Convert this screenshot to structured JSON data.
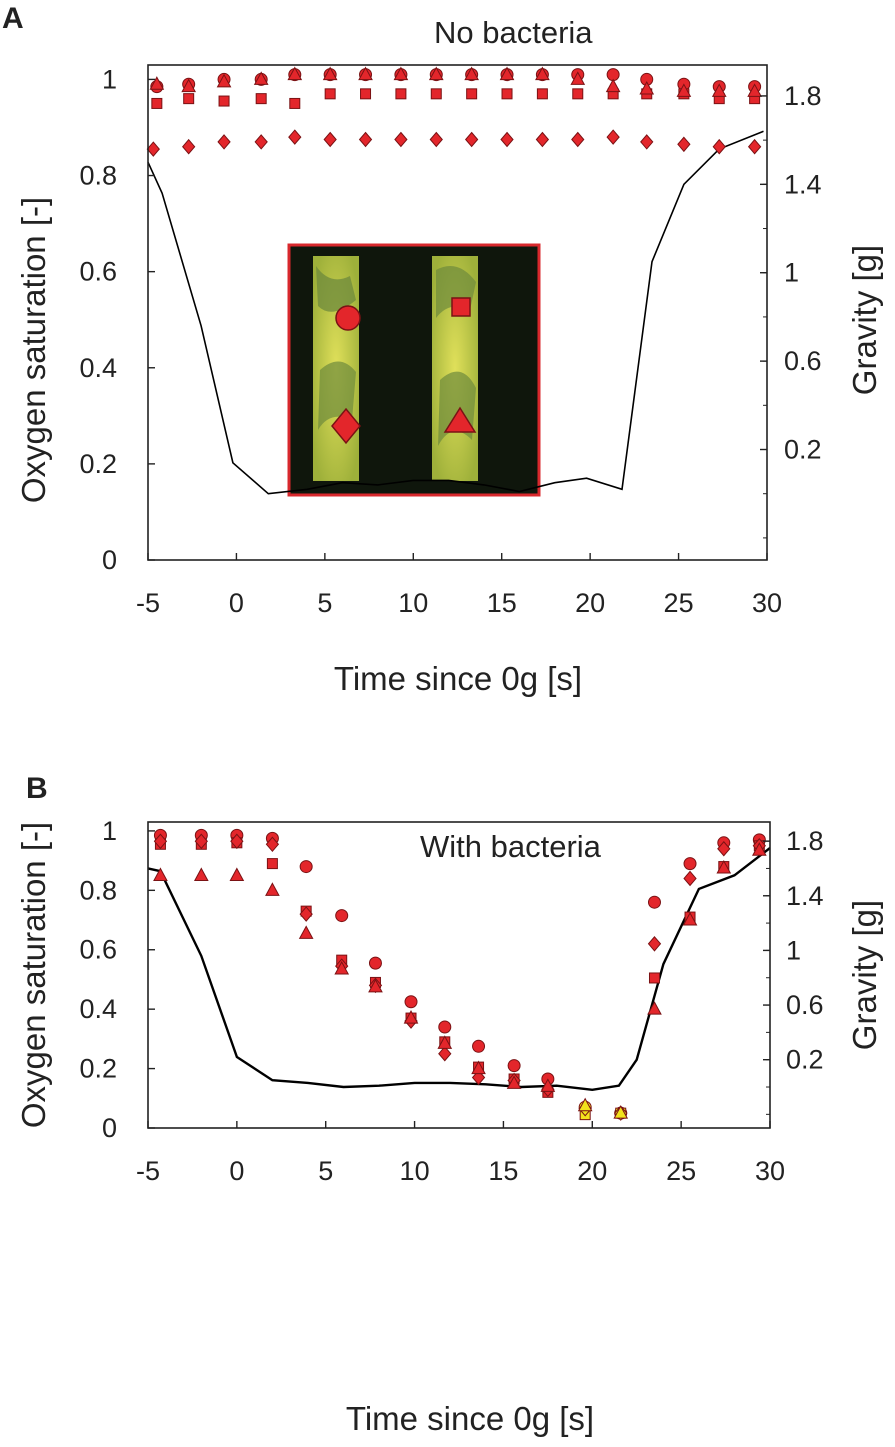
{
  "chart_data": [
    {
      "type": "scatter",
      "panel_label": "A",
      "annotation": "No bacteria",
      "xlabel": "Time since 0g [s]",
      "ylabel": "Oxygen saturation [-]",
      "y2label": "Gravity [g]",
      "xlim": [
        -5,
        30
      ],
      "ylim": [
        0,
        1.03
      ],
      "y2lim": [
        -0.3,
        1.94
      ],
      "x_ticks": [
        "-5",
        "0",
        "5",
        "10",
        "15",
        "20",
        "25",
        "30"
      ],
      "y_ticks": [
        "0",
        "0.2",
        "0.4",
        "0.6",
        "0.8",
        "1"
      ],
      "y2_ticks": [
        "0.2",
        "0.6",
        "1",
        "1.4",
        "1.8"
      ],
      "grid": false,
      "colors": {
        "marker": "#e3262b",
        "marker_edge": "#7a1214",
        "line": "#000000",
        "inset_border": "#d8282d"
      },
      "inset": {
        "description_markers": [
          "circle",
          "square",
          "diamond",
          "triangle"
        ]
      },
      "series": [
        {
          "marker": "circle",
          "x": [
            -4.5,
            -2.7,
            -0.7,
            1.4,
            3.3,
            5.3,
            7.3,
            9.3,
            11.3,
            13.3,
            15.3,
            17.3,
            19.3,
            21.3,
            23.2,
            25.3,
            27.3,
            29.3
          ],
          "y": [
            0.985,
            0.99,
            1.0,
            1.0,
            1.01,
            1.01,
            1.01,
            1.01,
            1.01,
            1.01,
            1.01,
            1.01,
            1.01,
            1.01,
            1.0,
            0.99,
            0.985,
            0.985
          ]
        },
        {
          "marker": "square",
          "x": [
            -4.5,
            -2.7,
            -0.7,
            1.4,
            3.3,
            5.3,
            7.3,
            9.3,
            11.3,
            13.3,
            15.3,
            17.3,
            19.3,
            21.3,
            23.2,
            25.3,
            27.3,
            29.3
          ],
          "y": [
            0.95,
            0.96,
            0.955,
            0.96,
            0.95,
            0.97,
            0.97,
            0.97,
            0.97,
            0.97,
            0.97,
            0.97,
            0.97,
            0.97,
            0.97,
            0.97,
            0.96,
            0.96
          ]
        },
        {
          "marker": "diamond",
          "x": [
            -4.7,
            -2.7,
            -0.7,
            1.4,
            3.3,
            5.3,
            7.3,
            9.3,
            11.3,
            13.3,
            15.3,
            17.3,
            19.3,
            21.3,
            23.2,
            25.3,
            27.3,
            29.3
          ],
          "y": [
            0.855,
            0.86,
            0.87,
            0.87,
            0.88,
            0.875,
            0.875,
            0.875,
            0.875,
            0.875,
            0.875,
            0.875,
            0.875,
            0.88,
            0.87,
            0.865,
            0.86,
            0.86
          ]
        },
        {
          "marker": "triangle",
          "x": [
            -4.5,
            -2.7,
            -0.7,
            1.4,
            3.3,
            5.3,
            7.3,
            9.3,
            11.3,
            13.3,
            15.3,
            17.3,
            19.3,
            21.3,
            23.2,
            25.3,
            27.3,
            29.3
          ],
          "y": [
            0.99,
            0.985,
            0.995,
            1.0,
            1.01,
            1.01,
            1.01,
            1.01,
            1.01,
            1.01,
            1.01,
            1.01,
            1.0,
            0.985,
            0.98,
            0.975,
            0.975,
            0.975
          ]
        }
      ],
      "gravity": {
        "x": [
          -5,
          -4.2,
          -2,
          -0.2,
          1.8,
          4,
          6,
          8,
          10,
          12,
          14,
          16,
          18,
          19.8,
          21.8,
          23.5,
          25.3,
          27.3,
          29.8
        ],
        "g": [
          1.5,
          1.36,
          0.76,
          0.14,
          0.0,
          0.02,
          0.05,
          0.04,
          0.06,
          0.06,
          0.04,
          0.01,
          0.05,
          0.07,
          0.02,
          1.05,
          1.4,
          1.56,
          1.64
        ]
      }
    },
    {
      "type": "scatter",
      "panel_label": "B",
      "annotation": "With bacteria",
      "xlabel": "Time since 0g [s]",
      "ylabel": "Oxygen saturation [-]",
      "y2label": "Gravity [g]",
      "xlim": [
        -5,
        30
      ],
      "ylim": [
        0,
        1.03
      ],
      "y2lim": [
        -0.3,
        1.94
      ],
      "x_ticks": [
        "-5",
        "0",
        "5",
        "10",
        "15",
        "20",
        "25",
        "30"
      ],
      "y_ticks": [
        "0",
        "0.2",
        "0.4",
        "0.6",
        "0.8",
        "1"
      ],
      "y2_ticks": [
        "0.2",
        "0.6",
        "1",
        "1.4",
        "1.8"
      ],
      "grid": false,
      "colors": {
        "marker": "#e3262b",
        "marker_edge": "#7a1214",
        "highlight": "#f2e21c",
        "line": "#000000"
      },
      "series": [
        {
          "marker": "circle",
          "x": [
            -4.3,
            -2,
            0,
            2,
            3.9,
            5.9,
            7.8,
            9.8,
            11.7,
            13.6,
            15.6,
            17.5,
            19.6,
            21.6,
            23.5,
            25.5,
            27.4,
            29.4
          ],
          "y": [
            0.985,
            0.985,
            0.985,
            0.975,
            0.88,
            0.715,
            0.555,
            0.425,
            0.34,
            0.275,
            0.21,
            0.165,
            0.07,
            0.05,
            0.76,
            0.89,
            0.96,
            0.97
          ]
        },
        {
          "marker": "square",
          "x": [
            -4.3,
            -2,
            0,
            2,
            3.9,
            5.9,
            7.8,
            9.8,
            11.7,
            13.6,
            15.6,
            17.5,
            19.6,
            21.6,
            23.5,
            25.5,
            27.4,
            29.4
          ],
          "y": [
            0.955,
            0.955,
            0.96,
            0.89,
            0.73,
            0.565,
            0.49,
            0.37,
            0.29,
            0.205,
            0.165,
            0.12,
            0.045,
            0.05,
            0.505,
            0.71,
            0.88,
            0.95
          ]
        },
        {
          "marker": "diamond",
          "x": [
            -4.3,
            -2,
            0,
            2,
            3.9,
            5.9,
            7.8,
            9.8,
            11.7,
            13.6,
            15.6,
            17.5,
            19.6,
            21.6,
            23.5,
            25.5,
            27.4,
            29.4
          ],
          "y": [
            0.965,
            0.965,
            0.965,
            0.955,
            0.72,
            0.545,
            0.48,
            0.36,
            0.25,
            0.17,
            0.16,
            0.13,
            0.065,
            0.05,
            0.62,
            0.84,
            0.94,
            0.95
          ]
        },
        {
          "marker": "triangle",
          "x": [
            -4.3,
            -2,
            0,
            2,
            3.9,
            5.9,
            7.8,
            9.8,
            11.7,
            13.6,
            15.6,
            17.5,
            19.6,
            21.6,
            23.5,
            25.5,
            27.4,
            29.4
          ],
          "y": [
            0.85,
            0.85,
            0.85,
            0.8,
            0.655,
            0.535,
            0.475,
            0.37,
            0.285,
            0.2,
            0.15,
            0.14,
            0.075,
            0.05,
            0.4,
            0.7,
            0.875,
            0.935
          ]
        }
      ],
      "highlighted_points_x": [
        19.6,
        21.6
      ],
      "gravity": {
        "x": [
          -5,
          -4.3,
          -2,
          0,
          2,
          4,
          6,
          8,
          10,
          12,
          14,
          16,
          18,
          20,
          21.5,
          22.5,
          24,
          26,
          28,
          30
        ],
        "g": [
          1.6,
          1.58,
          0.96,
          0.22,
          0.05,
          0.03,
          0.0,
          0.01,
          0.03,
          0.03,
          0.02,
          0.0,
          0.01,
          -0.02,
          0.01,
          0.2,
          0.9,
          1.45,
          1.55,
          1.75
        ]
      }
    }
  ]
}
